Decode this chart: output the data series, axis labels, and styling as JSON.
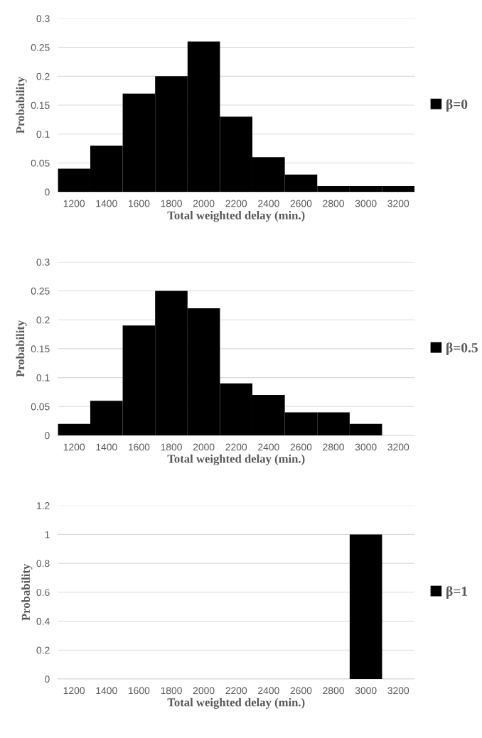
{
  "chart_data": [
    {
      "type": "histogram",
      "xlabel": "Total weighted delay (min.)",
      "ylabel": "Probability",
      "bins": [
        1100,
        1300,
        1500,
        1700,
        1900,
        2100,
        2300,
        2500,
        2700,
        2900,
        3100,
        3300
      ],
      "series": [
        {
          "name": "β=0",
          "color": "#000000",
          "values": [
            0.04,
            0.08,
            0.17,
            0.2,
            0.26,
            0.13,
            0.06,
            0.03,
            0.01,
            0.01,
            0.01
          ]
        }
      ],
      "xlim": [
        1100,
        3300
      ],
      "xticks": [
        1200,
        1400,
        1600,
        1800,
        2000,
        2200,
        2400,
        2600,
        2800,
        3000,
        3200
      ],
      "ylim": [
        0,
        0.3
      ],
      "yticks": [
        0,
        0.05,
        0.1,
        0.15,
        0.2,
        0.25,
        0.3
      ],
      "grid": "y",
      "legend": "right"
    },
    {
      "type": "histogram",
      "xlabel": "Total weighted delay (min.)",
      "ylabel": "Probability",
      "bins": [
        1100,
        1300,
        1500,
        1700,
        1900,
        2100,
        2300,
        2500,
        2700,
        2900,
        3100,
        3300
      ],
      "series": [
        {
          "name": "β=0.5",
          "color": "#000000",
          "values": [
            0.02,
            0.06,
            0.19,
            0.25,
            0.22,
            0.09,
            0.07,
            0.04,
            0.04,
            0.02,
            0
          ]
        }
      ],
      "xlim": [
        1100,
        3300
      ],
      "xticks": [
        1200,
        1400,
        1600,
        1800,
        2000,
        2200,
        2400,
        2600,
        2800,
        3000,
        3200
      ],
      "ylim": [
        0,
        0.3
      ],
      "yticks": [
        0,
        0.05,
        0.1,
        0.15,
        0.2,
        0.25,
        0.3
      ],
      "grid": "y",
      "legend": "right"
    },
    {
      "type": "histogram",
      "xlabel": "Total weighted delay (min.)",
      "ylabel": "Probability",
      "bins": [
        1100,
        1300,
        1500,
        1700,
        1900,
        2100,
        2300,
        2500,
        2700,
        2900,
        3100,
        3300
      ],
      "series": [
        {
          "name": "β=1",
          "color": "#000000",
          "values": [
            0,
            0,
            0,
            0,
            0,
            0,
            0,
            0,
            0,
            1,
            0
          ]
        }
      ],
      "xlim": [
        1100,
        3300
      ],
      "xticks": [
        1200,
        1400,
        1600,
        1800,
        2000,
        2200,
        2400,
        2600,
        2800,
        3000,
        3200
      ],
      "ylim": [
        0,
        1.2
      ],
      "yticks": [
        0,
        0.2,
        0.4,
        0.6,
        0.8,
        1,
        1.2
      ],
      "grid": "y",
      "legend": "right"
    }
  ]
}
